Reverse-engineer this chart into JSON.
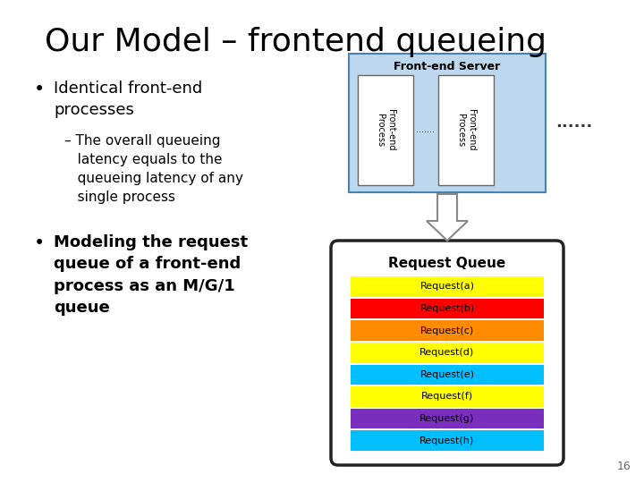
{
  "title": "Our Model – frontend queueing",
  "title_fontsize": 26,
  "bg_color": "#ffffff",
  "slide_number": "16",
  "bullet1_text": "Identical front-end\nprocesses",
  "sub_bullet1": "– The overall queueing\n   latency equals to the\n   queueing latency of any\n   single process",
  "bullet2_text": "Modeling the request\nqueue of a front-end\nprocess as an M/G/1\nqueue",
  "frontend_server_label": "Front-end Server",
  "process_label": "Front-end\nProcess",
  "dots_between": ".......",
  "dots_outside": "......",
  "request_queue_label": "Request Queue",
  "requests": [
    "Request(a)",
    "Request(b)",
    "Request(c)",
    "Request(d)",
    "Request(e)",
    "Request(f)",
    "Request(g)",
    "Request(h)"
  ],
  "request_colors": [
    "#FFFF00",
    "#FF0000",
    "#FF8C00",
    "#FFFF00",
    "#00BFFF",
    "#FFFF00",
    "#7B2FBE",
    "#00BFFF"
  ],
  "frontend_box_color": "#BDD7EE",
  "frontend_border_color": "#4682B4",
  "queue_box_bg": "#ffffff",
  "queue_border_color": "#222222",
  "arrow_fill": "#ffffff",
  "arrow_edge": "#888888"
}
